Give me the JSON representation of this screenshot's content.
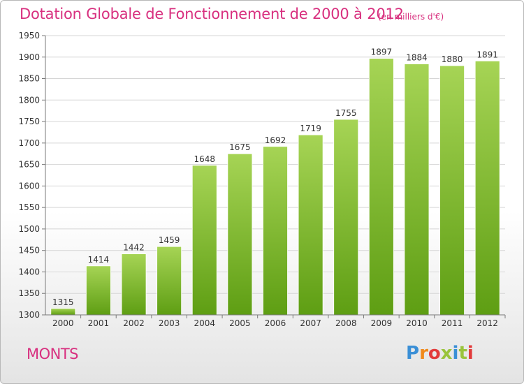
{
  "header": {
    "title": "Dotation Globale de Fonctionnement de 2000 à 2012",
    "subtitle": "(en milliers d'€)"
  },
  "footer": {
    "commune": "MONTS",
    "logo_letters": [
      "P",
      "r",
      "o",
      "x",
      "i",
      "t",
      "i"
    ],
    "logo_colors": [
      "#3a8fd6",
      "#f08a1c",
      "#e23b3b",
      "#9ac43c",
      "#3a8fd6",
      "#9ac43c",
      "#e23b3b"
    ]
  },
  "colors": {
    "title": "#d8307f",
    "bar_light": "#a6d455",
    "bar_dark": "#5e9e13",
    "grid": "#d6d6d6",
    "axis": "#7a7a7a"
  },
  "chart_data": {
    "type": "bar",
    "title": "Dotation Globale de Fonctionnement de 2000 à 2012",
    "subtitle": "(en milliers d'€)",
    "categories": [
      "2000",
      "2001",
      "2002",
      "2003",
      "2004",
      "2005",
      "2006",
      "2007",
      "2008",
      "2009",
      "2010",
      "2011",
      "2012"
    ],
    "values": [
      1315,
      1414,
      1442,
      1459,
      1648,
      1675,
      1692,
      1719,
      1755,
      1897,
      1884,
      1880,
      1891
    ],
    "ylim": [
      1300,
      1950
    ],
    "yticks": [
      1300,
      1350,
      1400,
      1450,
      1500,
      1550,
      1600,
      1650,
      1700,
      1750,
      1800,
      1850,
      1900,
      1950
    ],
    "grid": true,
    "legend": "none"
  }
}
